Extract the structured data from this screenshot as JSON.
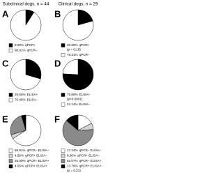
{
  "header": {
    "left": "Subclinical dogs, n = 44",
    "right": "Clinical dogs, n = 29"
  },
  "chart_data": [
    {
      "type": "pie",
      "panel": "A",
      "categories": [
        "qPCR+",
        "qPCR–"
      ],
      "values": [
        9.09,
        90.91
      ],
      "value_labels": [
        "9.09%",
        "90.91%"
      ],
      "colors": [
        "#000000",
        "#ffffff"
      ]
    },
    {
      "type": "pie",
      "panel": "B",
      "categories": [
        "qPCR+",
        "qPCR–"
      ],
      "values": [
        20.69,
        79.31
      ],
      "value_labels": [
        "20.69%",
        "79.31%"
      ],
      "colors": [
        "#000000",
        "#ffffff"
      ],
      "annotation": "(p = 0.16)"
    },
    {
      "type": "pie",
      "panel": "C",
      "categories": [
        "ELISA+",
        "ELISA–"
      ],
      "values": [
        29.55,
        70.45
      ],
      "value_labels": [
        "29.55%",
        "70.45%"
      ],
      "colors": [
        "#000000",
        "#ffffff"
      ]
    },
    {
      "type": "pie",
      "panel": "D",
      "categories": [
        "ELISA+",
        "ELISA–"
      ],
      "values": [
        75.86,
        24.14
      ],
      "value_labels": [
        "75.86%",
        "24.14%"
      ],
      "colors": [
        "#000000",
        "#ffffff"
      ],
      "annotation": "(p<0.0001)"
    },
    {
      "type": "pie",
      "panel": "E",
      "categories": [
        "qPCR– ELISA–",
        "qPCR+ ELISA–",
        "qPCR– ELISA+",
        "qPCR+ ELISA+"
      ],
      "values": [
        65.91,
        4.55,
        25.0,
        4.55
      ],
      "value_labels": [
        "65.91%",
        "4.55%",
        "25.00%",
        "4.55%"
      ],
      "colors": [
        "#ffffff",
        "#d4d4d4",
        "#8a8a8a",
        "#000000"
      ]
    },
    {
      "type": "pie",
      "panel": "F",
      "categories": [
        "qPCR– ELISA–",
        "qPCR+ ELISA–",
        "qPCR– ELISA+",
        "qPCR+ ELISA+"
      ],
      "values": [
        17.24,
        6.9,
        62.07,
        13.79
      ],
      "value_labels": [
        "17.24%",
        "6.90%",
        "62.07%",
        "13.79%"
      ],
      "colors": [
        "#ffffff",
        "#d4d4d4",
        "#8a8a8a",
        "#000000"
      ],
      "annotation": "(p = 0.21)"
    }
  ]
}
